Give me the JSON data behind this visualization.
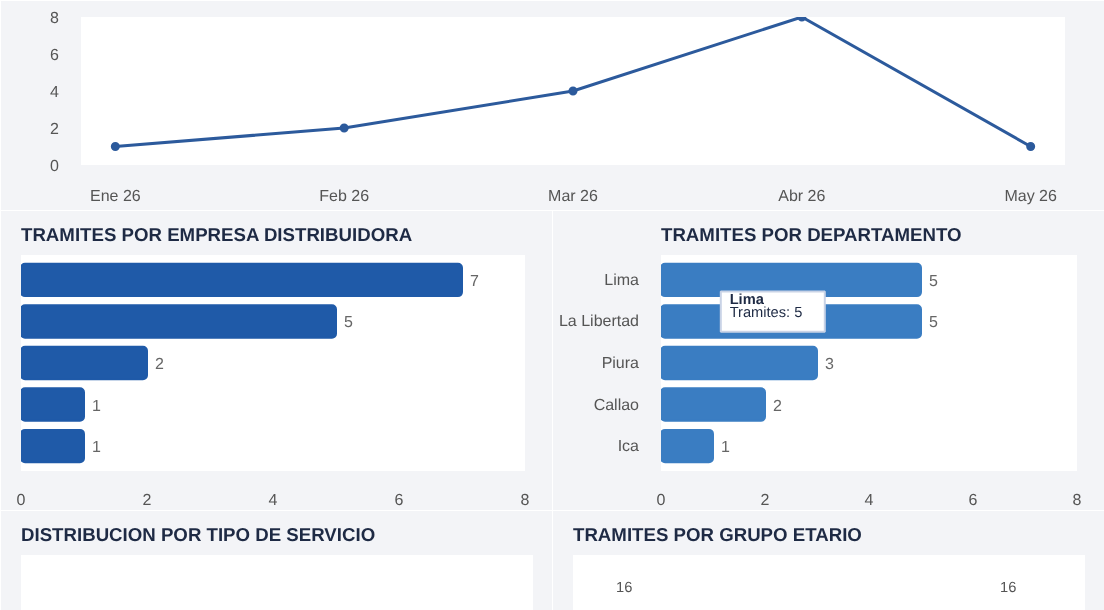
{
  "chart_data": [
    {
      "type": "line",
      "categories": [
        "Ene 26",
        "Feb 26",
        "Mar 26",
        "Abr 26",
        "May 26"
      ],
      "series": [
        {
          "color": "#2c5a9c",
          "values": [
            1,
            2,
            4,
            8,
            1
          ]
        }
      ],
      "ylim": [
        0,
        8
      ],
      "yticks": [
        0,
        2,
        4,
        6,
        8
      ],
      "marker": "circle",
      "grid": false
    },
    {
      "type": "bar",
      "orientation": "horizontal",
      "title": "TRAMITES POR EMPRESA DISTRIBUIDORA",
      "categories": [
        null,
        null,
        null,
        null,
        null
      ],
      "values": [
        7,
        5,
        2,
        1,
        1
      ],
      "color": "#1f5aa8",
      "xlim": [
        0,
        8
      ],
      "xticks": [
        0,
        2,
        4,
        6,
        8
      ],
      "data_labels": true,
      "grid": false
    },
    {
      "type": "bar",
      "orientation": "horizontal",
      "title": "TRAMITES POR DEPARTAMENTO",
      "categories": [
        "Lima",
        "La Libertad",
        "Piura",
        "Callao",
        "Ica"
      ],
      "values": [
        5,
        5,
        3,
        2,
        1
      ],
      "color": "#3a7dc2",
      "xlim": [
        0,
        8
      ],
      "xticks": [
        0,
        2,
        4,
        6,
        8
      ],
      "data_labels": true,
      "grid": false,
      "annotations": [
        "Lima",
        "Tramites: 5"
      ]
    },
    {
      "type": "other",
      "title": "DISTRIBUCION POR TIPO DE SERVICIO"
    },
    {
      "type": "other",
      "title": "TRAMITES POR GRUPO ETARIO",
      "annotations": [
        "16",
        "16"
      ]
    }
  ]
}
